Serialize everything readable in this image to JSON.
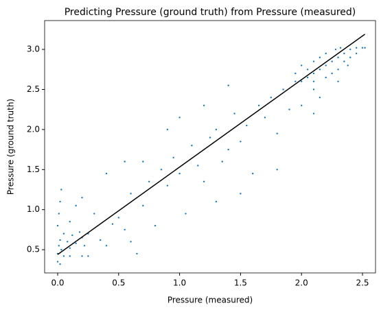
{
  "chart_data": {
    "type": "scatter",
    "title": "Predicting Pressure (ground truth) from Pressure (measured)",
    "x_label": "Pressure (measured)",
    "y_label": "Pressure (ground truth)",
    "xlim": [
      -0.107,
      2.607
    ],
    "ylim": [
      0.21,
      3.36
    ],
    "xticks": [
      {
        "value": 0,
        "label": "0.0"
      },
      0.5,
      {
        "value": 1,
        "label": "1.0"
      },
      1.5,
      {
        "value": 2,
        "label": "2.0"
      },
      2.5
    ],
    "yticks": [
      0.5,
      {
        "value": 1,
        "label": "1.0"
      },
      1.5,
      {
        "value": 2,
        "label": "2.0"
      },
      2.5,
      {
        "value": 3,
        "label": "3.0"
      }
    ],
    "series": [
      {
        "type": "scatter",
        "color": "#1f77b4",
        "x": [
          0,
          0.01,
          0.02,
          0.03,
          0.05,
          0.08,
          0.1,
          0.12,
          0.15,
          0.18,
          0.2,
          0.22,
          0.25,
          0,
          0.02,
          0.05,
          0.1,
          0.2,
          0.25,
          0,
          0.01,
          0.02,
          0.03,
          0.1,
          0.15,
          0.2,
          0.3,
          0.35,
          0.4,
          0.45,
          0.5,
          0.55,
          0.6,
          0.65,
          0.7,
          0.75,
          0.8,
          0.85,
          0.9,
          0.95,
          1.0,
          1.05,
          1.1,
          1.15,
          1.2,
          1.25,
          1.3,
          1.35,
          1.4,
          1.45,
          1.5,
          1.55,
          1.6,
          1.65,
          1.7,
          1.75,
          1.8,
          1.85,
          1.9,
          1.95,
          0.4,
          0.55,
          0.7,
          0.9,
          1.0,
          1.2,
          1.4,
          0.6,
          1.3,
          1.5,
          1.8,
          2.1,
          2.0,
          2.15,
          2.0,
          2.05,
          2.1,
          2.1,
          2.15,
          2.2,
          2.2,
          2.25,
          2.25,
          2.3,
          2.3,
          2.35,
          2.35,
          2.4,
          2.4,
          2.45,
          2.5,
          2.52,
          2.1,
          2.0,
          2.2,
          2.28,
          1.95,
          2.3,
          2.38,
          2.1,
          2.05,
          2.15,
          2.45,
          2.32
        ],
        "values": [
          0.45,
          0.55,
          0.62,
          0.5,
          0.7,
          0.6,
          0.52,
          0.68,
          0.58,
          0.72,
          0.65,
          0.55,
          0.7,
          0.35,
          0.32,
          0.42,
          0.42,
          0.42,
          0.42,
          0.8,
          0.95,
          1.1,
          1.25,
          0.85,
          1.05,
          1.15,
          0.95,
          0.62,
          0.55,
          0.82,
          0.9,
          0.75,
          1.2,
          0.45,
          1.05,
          1.35,
          0.8,
          1.5,
          1.3,
          1.65,
          1.45,
          0.95,
          1.8,
          1.55,
          1.35,
          1.9,
          2.0,
          1.6,
          1.75,
          2.2,
          1.85,
          2.05,
          1.45,
          2.3,
          2.15,
          2.4,
          1.95,
          2.5,
          2.25,
          2.6,
          1.45,
          1.6,
          1.6,
          2.0,
          2.15,
          2.3,
          2.55,
          0.6,
          1.1,
          1.2,
          1.5,
          2.2,
          2.3,
          2.4,
          2.6,
          2.65,
          2.7,
          2.6,
          2.75,
          2.8,
          2.65,
          2.85,
          2.7,
          2.9,
          2.75,
          2.95,
          2.85,
          3.0,
          2.9,
          3.02,
          3.02,
          3.02,
          2.85,
          2.8,
          2.95,
          3.0,
          2.7,
          2.6,
          2.8,
          2.5,
          2.75,
          2.9,
          2.95,
          3.02
        ]
      },
      {
        "type": "line",
        "color": "#000000",
        "x": [
          0,
          2.52
        ],
        "values": [
          0.44,
          3.19
        ]
      }
    ]
  }
}
